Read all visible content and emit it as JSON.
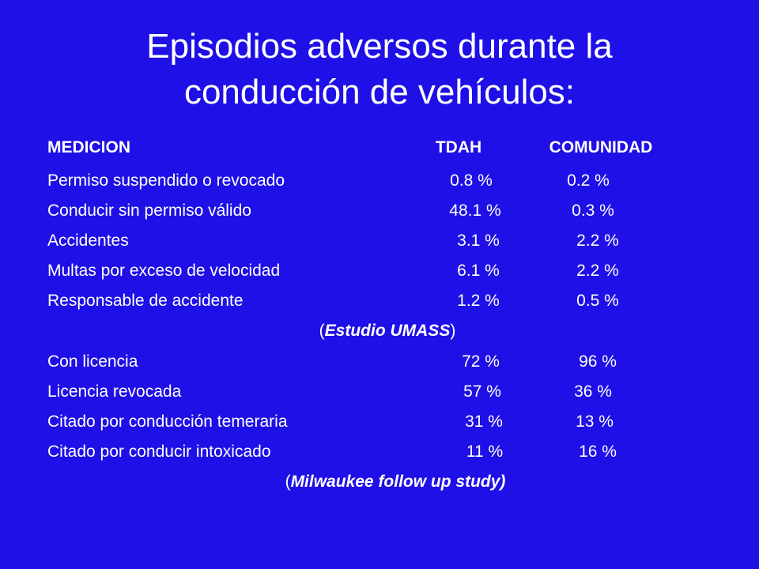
{
  "title_line1": "Episodios adversos durante la",
  "title_line2": "conducción de vehículos:",
  "header": {
    "col1": "MEDICION",
    "col2": "TDAH",
    "col3": "COMUNIDAD"
  },
  "rows1": [
    {
      "label": "Permiso suspendido o revocado",
      "tdah": "0.8 %",
      "com": "0.2 %"
    },
    {
      "label": "Conducir sin permiso válido",
      "tdah": "48.1 %",
      "com": "0.3 %"
    },
    {
      "label": "Accidentes",
      "tdah": "3.1 %",
      "com": "2.2 %"
    },
    {
      "label": "Multas por exceso de velocidad",
      "tdah": "6.1 %",
      "com": "2.2 %"
    },
    {
      "label": "Responsable de accidente",
      "tdah": "1.2 %",
      "com": "0.5 %"
    }
  ],
  "source1": {
    "open": "(",
    "name": "Estudio UMASS",
    "close": ")"
  },
  "rows2": [
    {
      "label": "Con licencia",
      "tdah": "72 %",
      "com": "96 %"
    },
    {
      "label": "Licencia revocada",
      "tdah": "57 %",
      "com": "36 %"
    },
    {
      "label": "Citado por conducción temeraria",
      "tdah": "31 %",
      "com": "13 %"
    },
    {
      "label": "Citado por conducir intoxicado",
      "tdah": "11 %",
      "com": "16 %"
    }
  ],
  "source2": {
    "open": "(",
    "name": "Milwaukee follow up study)"
  }
}
